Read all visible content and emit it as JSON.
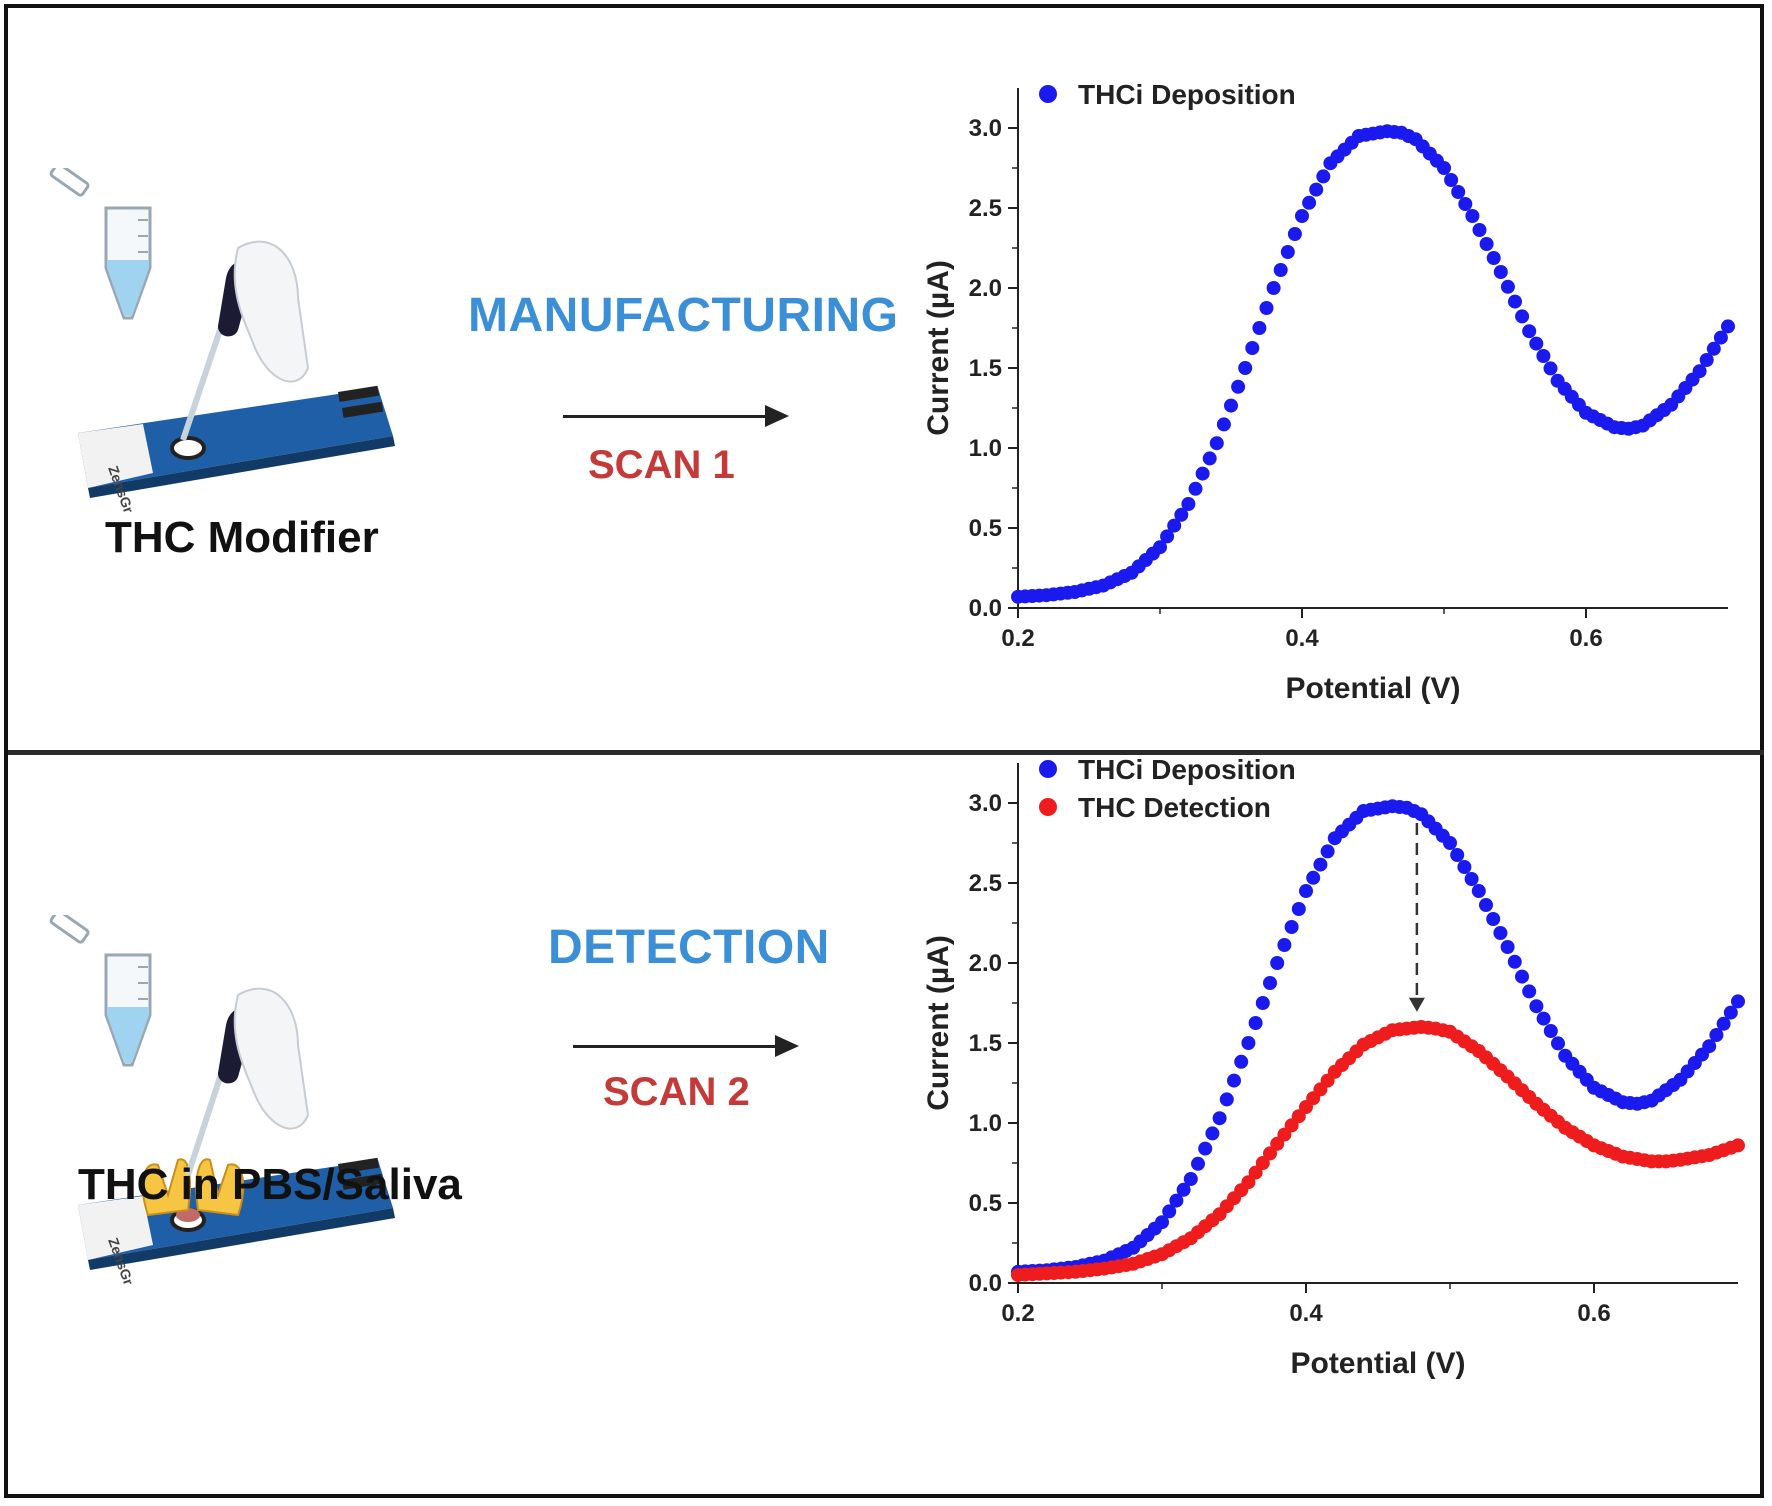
{
  "top": {
    "caption": "THC Modifier",
    "step_label": "MANUFACTURING",
    "scan_label": "SCAN 1",
    "strip_brand": "ZensGr"
  },
  "bottom": {
    "caption": "THC in PBS/Saliva",
    "step_label": "DETECTION",
    "scan_label": "SCAN 2",
    "strip_brand": "ZensGr"
  },
  "colors": {
    "deposition": "#1a1aee",
    "detection": "#ee1c1c",
    "step_text": "#3b8fd6",
    "scan_text": "#c43a38",
    "strip": "#1f5fa8"
  },
  "chart_data": [
    {
      "type": "scatter",
      "xlabel": "Potential (V)",
      "ylabel": "Current (µA)",
      "xlim": [
        0.2,
        0.7
      ],
      "ylim": [
        0.0,
        3.25
      ],
      "xticks": [
        "0.2",
        "0.4",
        "0.6"
      ],
      "xtick_values": [
        0.2,
        0.4,
        0.6
      ],
      "yticks": [
        "0.0",
        "0.5",
        "1.0",
        "1.5",
        "2.0",
        "2.5",
        "3.0"
      ],
      "ytick_values": [
        0.0,
        0.5,
        1.0,
        1.5,
        2.0,
        2.5,
        3.0
      ],
      "legend_position": "top-left",
      "series": [
        {
          "name": "THCi Deposition",
          "color": "#1a1aee",
          "x": [
            0.2,
            0.22,
            0.24,
            0.26,
            0.28,
            0.3,
            0.32,
            0.34,
            0.36,
            0.38,
            0.4,
            0.42,
            0.44,
            0.46,
            0.47,
            0.48,
            0.5,
            0.52,
            0.54,
            0.56,
            0.58,
            0.6,
            0.62,
            0.63,
            0.64,
            0.66,
            0.68,
            0.7
          ],
          "y": [
            0.07,
            0.08,
            0.1,
            0.14,
            0.22,
            0.38,
            0.65,
            1.03,
            1.5,
            2.0,
            2.45,
            2.78,
            2.95,
            2.98,
            2.97,
            2.93,
            2.75,
            2.45,
            2.1,
            1.73,
            1.42,
            1.22,
            1.13,
            1.12,
            1.14,
            1.27,
            1.48,
            1.76
          ]
        }
      ]
    },
    {
      "type": "scatter",
      "xlabel": "Potential (V)",
      "ylabel": "Current (µA)",
      "xlim": [
        0.2,
        0.7
      ],
      "ylim": [
        0.0,
        3.25
      ],
      "xticks": [
        "0.2",
        "0.4",
        "0.6"
      ],
      "xtick_values": [
        0.2,
        0.4,
        0.6
      ],
      "yticks": [
        "0.0",
        "0.5",
        "1.0",
        "1.5",
        "2.0",
        "2.5",
        "3.0"
      ],
      "ytick_values": [
        0.0,
        0.5,
        1.0,
        1.5,
        2.0,
        2.5,
        3.0
      ],
      "legend_position": "top-left",
      "annotation": {
        "type": "dashed-arrow",
        "x": 0.477,
        "from_y": 2.95,
        "to_y": 1.62
      },
      "series": [
        {
          "name": "THCi Deposition",
          "color": "#1a1aee",
          "x": [
            0.2,
            0.22,
            0.24,
            0.26,
            0.28,
            0.3,
            0.32,
            0.34,
            0.36,
            0.38,
            0.4,
            0.42,
            0.44,
            0.46,
            0.47,
            0.48,
            0.5,
            0.52,
            0.54,
            0.56,
            0.58,
            0.6,
            0.62,
            0.63,
            0.64,
            0.66,
            0.68,
            0.7
          ],
          "y": [
            0.07,
            0.08,
            0.1,
            0.14,
            0.22,
            0.38,
            0.65,
            1.03,
            1.5,
            2.0,
            2.45,
            2.78,
            2.95,
            2.98,
            2.97,
            2.93,
            2.75,
            2.45,
            2.1,
            1.73,
            1.42,
            1.22,
            1.13,
            1.12,
            1.14,
            1.27,
            1.48,
            1.76
          ]
        },
        {
          "name": "THC Detection",
          "color": "#ee1c1c",
          "x": [
            0.2,
            0.22,
            0.24,
            0.26,
            0.28,
            0.3,
            0.32,
            0.34,
            0.36,
            0.38,
            0.4,
            0.42,
            0.44,
            0.46,
            0.48,
            0.49,
            0.5,
            0.52,
            0.54,
            0.56,
            0.58,
            0.6,
            0.62,
            0.64,
            0.65,
            0.66,
            0.68,
            0.7
          ],
          "y": [
            0.05,
            0.06,
            0.07,
            0.09,
            0.12,
            0.18,
            0.28,
            0.43,
            0.63,
            0.87,
            1.1,
            1.32,
            1.49,
            1.58,
            1.6,
            1.59,
            1.57,
            1.45,
            1.29,
            1.12,
            0.97,
            0.86,
            0.79,
            0.76,
            0.76,
            0.77,
            0.8,
            0.86
          ]
        }
      ]
    }
  ]
}
